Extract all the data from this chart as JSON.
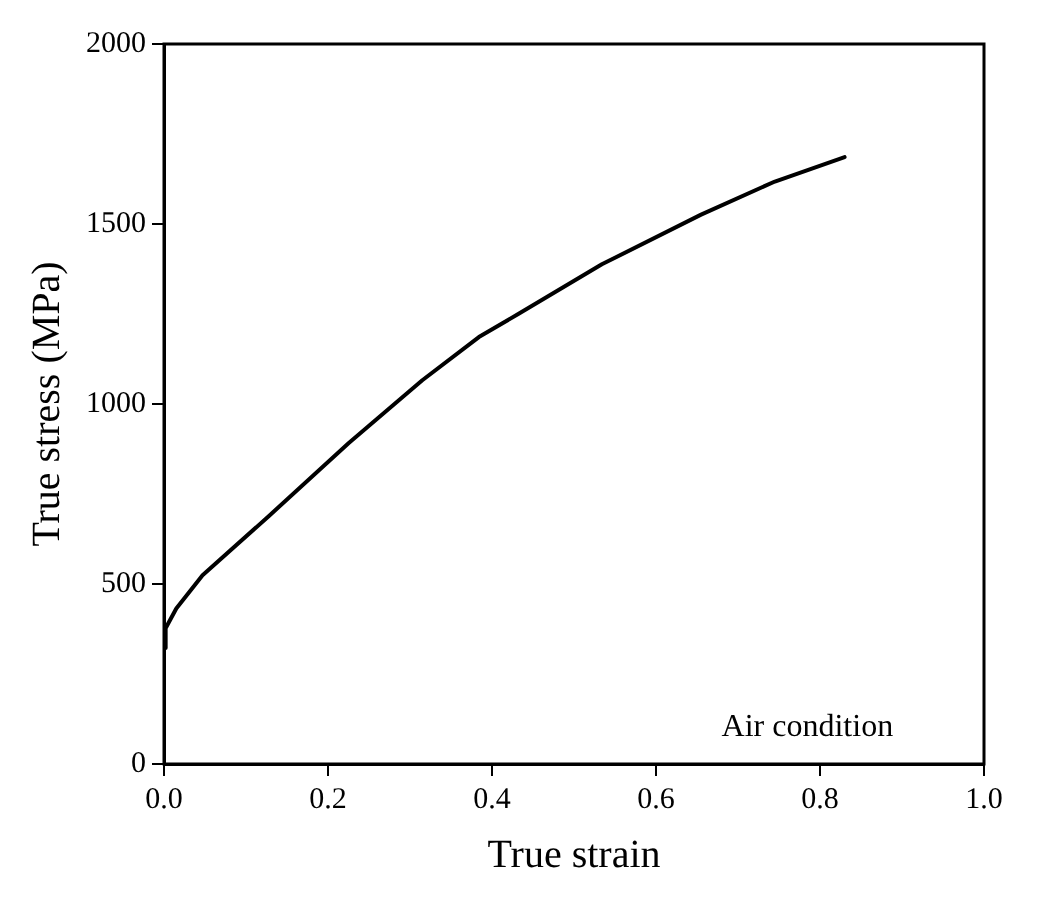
{
  "chart_data": {
    "type": "line",
    "xlabel": "True strain",
    "ylabel": "True stress (MPa)",
    "annotations": [
      "Air condition"
    ],
    "series": [
      {
        "color": "#000000",
        "x": [
          0,
          0.002,
          0.015,
          0.047,
          0.128,
          0.225,
          0.315,
          0.384,
          0.432,
          0.534,
          0.655,
          0.745,
          0.83
        ],
        "values": [
          322,
          377,
          432,
          524,
          689,
          891,
          1066,
          1186,
          1250,
          1388,
          1526,
          1618,
          1686
        ]
      }
    ],
    "xlim": [
      0,
      1
    ],
    "xticks": [
      {
        "value": 0,
        "label": "0.0"
      },
      0.2,
      0.4,
      0.6,
      0.8,
      {
        "value": 1,
        "label": "1.0"
      }
    ],
    "ylim": [
      0,
      2000
    ],
    "yticks": [
      0,
      500,
      1000,
      1500,
      2000
    ],
    "grid": false,
    "legend": false,
    "marker": "none",
    "line_style": "solid"
  }
}
